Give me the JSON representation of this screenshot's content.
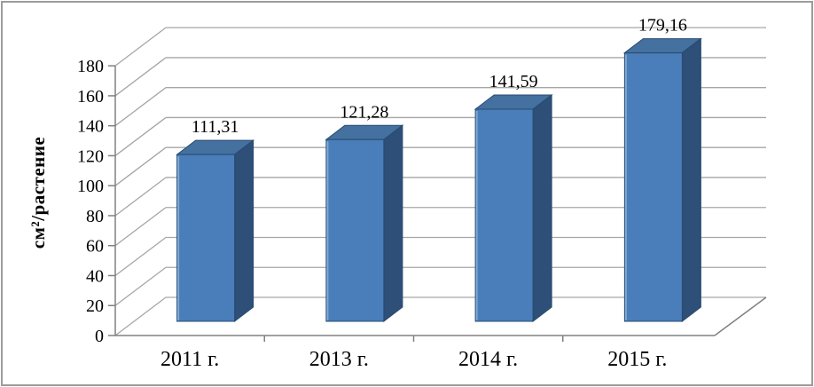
{
  "chart_data": {
    "type": "bar",
    "projection": "3d",
    "title": "",
    "ylabel": "см²/растение",
    "xlabel": "",
    "categories": [
      "2011 г.",
      "2013 г.",
      "2014 г.",
      "2015 г."
    ],
    "values": [
      111.31,
      121.28,
      141.59,
      179.16
    ],
    "value_labels": [
      "111,31",
      "121,28",
      "141,59",
      "179,16"
    ],
    "yticks": [
      0,
      20,
      40,
      60,
      80,
      100,
      120,
      140,
      160,
      180
    ],
    "ytick_labels": [
      "0",
      "20",
      "40",
      "60",
      "80",
      "100",
      "120",
      "140",
      "160",
      "180"
    ],
    "ylim": [
      0,
      180
    ],
    "grid": true,
    "legend": false,
    "colors": {
      "bar_front": "#4a7eba",
      "bar_top": "#44719f",
      "bar_side": "#2e4f78",
      "bar_edge": "#274a70",
      "bar_highlight": "#7fa8d4",
      "gridline": "#a6a6a6",
      "axis": "#808080",
      "text": "#000000",
      "background": "#ffffff",
      "frame_border": "#9c9c9c"
    }
  }
}
